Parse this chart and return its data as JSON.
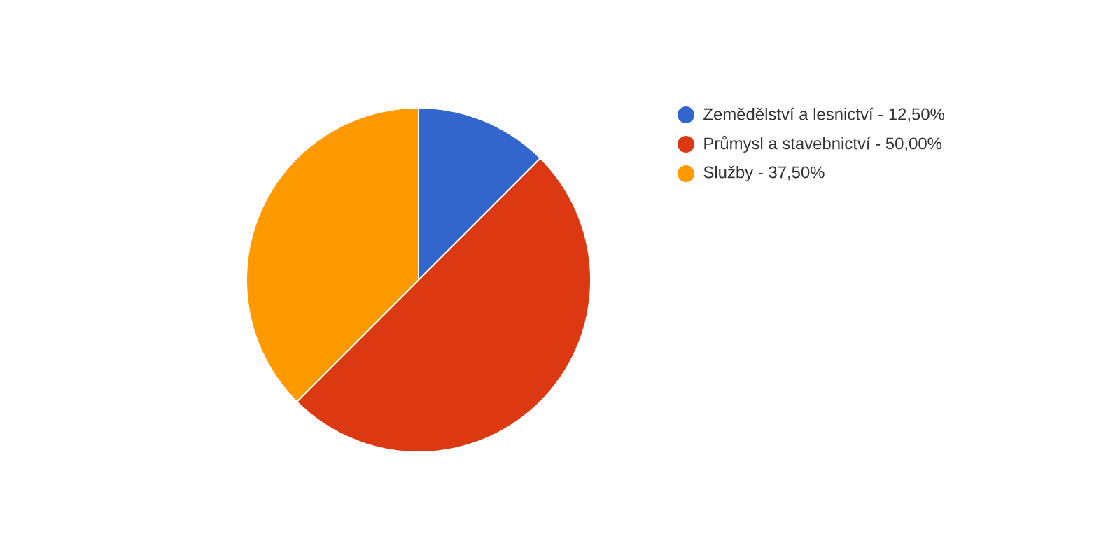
{
  "chart_data": {
    "type": "pie",
    "categories": [
      "Zemědělství a lesnictví - 12,50%",
      "Průmysl a stavebnictví - 50,00%",
      "Služby - 37,50%"
    ],
    "values": [
      12.5,
      50,
      37.5
    ],
    "colors": [
      "#3366cc",
      "#dc3912",
      "#ff9900"
    ],
    "legend": "right"
  }
}
